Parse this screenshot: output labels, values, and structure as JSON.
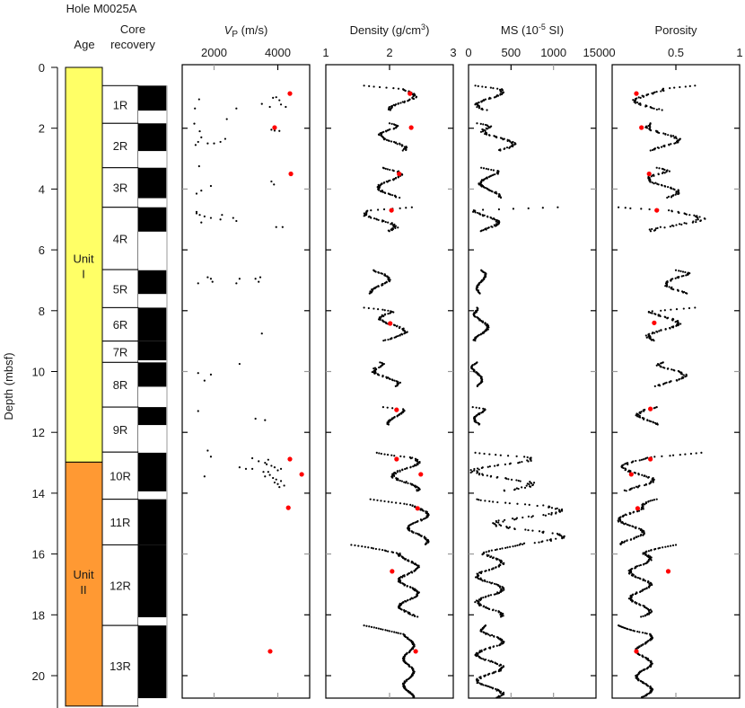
{
  "chart_data": {
    "type": "scatter",
    "title": "Hole M0025A",
    "ylabel": "Depth (mbsf)",
    "ylim": [
      0,
      21
    ],
    "yticks": [
      "0",
      "2",
      "4",
      "6",
      "8",
      "10",
      "12",
      "14",
      "16",
      "18",
      "20"
    ],
    "columns": {
      "age_label": "Age",
      "core_label_1": "Core",
      "core_label_2": "recovery"
    },
    "units": [
      {
        "name_1": "Unit",
        "name_2": "I",
        "top": 0,
        "bottom": 12.98,
        "color": "#FFFF66"
      },
      {
        "name_1": "Unit",
        "name_2": "II",
        "top": 12.98,
        "bottom": 21.0,
        "color": "#FF9933"
      }
    ],
    "cores": [
      {
        "label": "1R",
        "top": 0.6,
        "bottom": 1.84,
        "rec_top": 0.6,
        "rec_bottom": 1.42
      },
      {
        "label": "2R",
        "top": 1.84,
        "bottom": 3.3,
        "rec_top": 1.84,
        "rec_bottom": 2.75
      },
      {
        "label": "3R",
        "top": 3.3,
        "bottom": 4.6,
        "rec_top": 3.3,
        "rec_bottom": 4.3
      },
      {
        "label": "4R",
        "top": 4.6,
        "bottom": 6.65,
        "rec_top": 4.6,
        "rec_bottom": 5.4
      },
      {
        "label": "5R",
        "top": 6.65,
        "bottom": 7.9,
        "rec_top": 6.67,
        "rec_bottom": 7.45
      },
      {
        "label": "6R",
        "top": 7.9,
        "bottom": 9.0,
        "rec_top": 7.9,
        "rec_bottom": 9.0
      },
      {
        "label": "7R",
        "top": 9.0,
        "bottom": 9.7,
        "rec_top": 9.0,
        "rec_bottom": 9.63
      },
      {
        "label": "8R",
        "top": 9.7,
        "bottom": 11.17,
        "rec_top": 9.7,
        "rec_bottom": 10.5
      },
      {
        "label": "9R",
        "top": 11.17,
        "bottom": 12.65,
        "rec_top": 11.17,
        "rec_bottom": 11.76
      },
      {
        "label": "10R",
        "top": 12.65,
        "bottom": 14.2,
        "rec_top": 12.67,
        "rec_bottom": 13.94
      },
      {
        "label": "11R",
        "top": 14.2,
        "bottom": 15.7,
        "rec_top": 14.2,
        "rec_bottom": 15.7
      },
      {
        "label": "12R",
        "top": 15.7,
        "bottom": 18.35,
        "rec_top": 15.7,
        "rec_bottom": 18.08
      },
      {
        "label": "13R",
        "top": 18.35,
        "bottom": 21.0,
        "rec_top": 18.35,
        "rec_bottom": 20.74
      }
    ],
    "panels": [
      {
        "id": "vp",
        "title_main": "V",
        "title_sub": "P",
        "title_rest": " (m/s)",
        "xlim": [
          1000,
          5000
        ],
        "xticks": [
          {
            "v": 2000,
            "label": "2000"
          },
          {
            "v": 4000,
            "label": "4000"
          }
        ],
        "edge_labels": false,
        "logs": [
          [
            1.05,
            1530
          ],
          [
            1.35,
            1400
          ],
          [
            1.85,
            1380
          ],
          [
            2.1,
            1550
          ],
          [
            2.3,
            1600
          ],
          [
            2.45,
            1500
          ],
          [
            2.5,
            1800
          ],
          [
            2.5,
            2000
          ],
          [
            2.45,
            2200
          ],
          [
            2.35,
            2350
          ],
          [
            2.55,
            1420
          ],
          [
            1.7,
            2400
          ],
          [
            1.0,
            3850
          ],
          [
            0.98,
            3950
          ],
          [
            1.08,
            4050
          ],
          [
            1.22,
            4100
          ],
          [
            1.3,
            4250
          ],
          [
            1.2,
            3500
          ],
          [
            1.3,
            3750
          ],
          [
            1.35,
            2700
          ],
          [
            2.05,
            3800
          ],
          [
            2.08,
            3900
          ],
          [
            2.09,
            4050
          ],
          [
            3.25,
            1530
          ],
          [
            4.05,
            1600
          ],
          [
            3.9,
            1900
          ],
          [
            4.15,
            1450
          ],
          [
            4.8,
            1450
          ],
          [
            4.85,
            1550
          ],
          [
            4.9,
            1700
          ],
          [
            4.95,
            1900
          ],
          [
            5.0,
            2200
          ],
          [
            4.95,
            2600
          ],
          [
            5.05,
            2700
          ],
          [
            4.85,
            2250
          ],
          [
            5.1,
            1600
          ],
          [
            4.75,
            1450
          ],
          [
            3.75,
            3800
          ],
          [
            3.85,
            3880
          ],
          [
            5.25,
            3950
          ],
          [
            5.25,
            4150
          ],
          [
            6.9,
            1800
          ],
          [
            6.95,
            1900
          ],
          [
            7.05,
            1950
          ],
          [
            7.1,
            1500
          ],
          [
            6.95,
            2800
          ],
          [
            7.1,
            2700
          ],
          [
            6.95,
            3300
          ],
          [
            7.05,
            3400
          ],
          [
            6.9,
            3450
          ],
          [
            8.75,
            3500
          ],
          [
            9.75,
            2800
          ],
          [
            10.05,
            1500
          ],
          [
            10.1,
            1900
          ],
          [
            10.3,
            1700
          ],
          [
            11.3,
            1500
          ],
          [
            11.55,
            3300
          ],
          [
            11.6,
            3600
          ],
          [
            12.6,
            1800
          ],
          [
            12.8,
            1900
          ],
          [
            13.45,
            1700
          ],
          [
            12.85,
            3200
          ],
          [
            13.15,
            2800
          ],
          [
            13.2,
            3000
          ],
          [
            13.2,
            3200
          ],
          [
            12.95,
            3400
          ],
          [
            13.0,
            3600
          ],
          [
            12.9,
            3700
          ],
          [
            13.05,
            3650
          ],
          [
            13.1,
            3800
          ],
          [
            13.3,
            3700
          ],
          [
            13.4,
            3750
          ],
          [
            13.5,
            3850
          ],
          [
            13.55,
            3950
          ],
          [
            13.6,
            4100
          ],
          [
            13.65,
            3900
          ],
          [
            13.7,
            4000
          ],
          [
            13.3,
            3550
          ],
          [
            13.45,
            3600
          ],
          [
            13.25,
            4000
          ],
          [
            13.75,
            4200
          ],
          [
            13.8,
            4050
          ],
          [
            13.15,
            3900
          ],
          [
            13.2,
            4100
          ]
        ],
        "measured": [
          [
            0.86,
            4380
          ],
          [
            1.98,
            3900
          ],
          [
            3.5,
            4410
          ],
          [
            12.88,
            4380
          ],
          [
            13.38,
            4750
          ],
          [
            14.48,
            4330
          ],
          [
            19.2,
            3760
          ]
        ]
      },
      {
        "id": "density",
        "title_main": "Density (g/cm",
        "title_sup": "3",
        "title_rest": ")",
        "xlim": [
          1,
          3
        ],
        "xticks": [
          {
            "v": 1,
            "label": "1"
          },
          {
            "v": 2,
            "label": "2"
          },
          {
            "v": 3,
            "label": "3"
          }
        ],
        "logs_desc": "continuous MSCL density",
        "segments": [
          {
            "top": 0.6,
            "bottom": 1.42,
            "base": 2.2,
            "amp": 0.2,
            "start": 1.6
          },
          {
            "top": 1.84,
            "bottom": 2.75,
            "base": 2.05,
            "amp": 0.2,
            "start": 2.0
          },
          {
            "top": 3.3,
            "bottom": 4.3,
            "base": 2.0,
            "amp": 0.18,
            "start": 1.9
          },
          {
            "top": 4.6,
            "bottom": 5.4,
            "base": 1.85,
            "amp": 0.25,
            "start": 2.35
          },
          {
            "top": 6.67,
            "bottom": 7.45,
            "base": 1.85,
            "amp": 0.15,
            "start": 1.75
          },
          {
            "top": 7.9,
            "bottom": 9.0,
            "base": 2.05,
            "amp": 0.2,
            "start": 1.6
          },
          {
            "top": 9.7,
            "bottom": 10.5,
            "base": 1.95,
            "amp": 0.2,
            "start": 1.85
          },
          {
            "top": 11.17,
            "bottom": 11.76,
            "base": 2.1,
            "amp": 0.12,
            "start": 1.9
          },
          {
            "top": 12.67,
            "bottom": 13.94,
            "base": 2.25,
            "amp": 0.2,
            "start": 1.8
          },
          {
            "top": 14.2,
            "bottom": 15.7,
            "base": 2.45,
            "amp": 0.15,
            "start": 1.7
          },
          {
            "top": 15.7,
            "bottom": 18.08,
            "base": 2.3,
            "amp": 0.15,
            "start": 1.4
          },
          {
            "top": 18.35,
            "bottom": 20.74,
            "base": 2.3,
            "amp": 0.08,
            "start": 1.6
          }
        ],
        "measured": [
          [
            0.86,
            2.32
          ],
          [
            1.98,
            2.34
          ],
          [
            3.5,
            2.15
          ],
          [
            4.7,
            2.03
          ],
          [
            8.42,
            2.01
          ],
          [
            11.26,
            2.11
          ],
          [
            12.88,
            2.11
          ],
          [
            13.38,
            2.49
          ],
          [
            14.5,
            2.44
          ],
          [
            16.57,
            2.04
          ],
          [
            19.2,
            2.41
          ]
        ]
      },
      {
        "id": "ms",
        "title_main": "MS (10",
        "title_sup": "-5",
        "title_rest": " SI)",
        "xlim": [
          0,
          1500
        ],
        "xticks": [
          {
            "v": 0,
            "label": "0"
          },
          {
            "v": 500,
            "label": "500"
          },
          {
            "v": 1000,
            "label": "1000"
          },
          {
            "v": 1500,
            "label": "1500"
          }
        ],
        "segments": [
          {
            "top": 0.6,
            "bottom": 1.42,
            "base": 250,
            "amp": 150,
            "start": 80
          },
          {
            "top": 1.84,
            "bottom": 2.75,
            "base": 350,
            "amp": 180,
            "start": 100
          },
          {
            "top": 3.3,
            "bottom": 4.3,
            "base": 250,
            "amp": 120,
            "start": 150
          },
          {
            "top": 4.6,
            "bottom": 5.4,
            "base": 200,
            "amp": 150,
            "start": 1050
          },
          {
            "top": 6.67,
            "bottom": 7.45,
            "base": 150,
            "amp": 50,
            "start": 150
          },
          {
            "top": 7.9,
            "bottom": 9.0,
            "base": 150,
            "amp": 80,
            "start": 100
          },
          {
            "top": 9.7,
            "bottom": 10.5,
            "base": 100,
            "amp": 60,
            "start": 100
          },
          {
            "top": 11.17,
            "bottom": 11.76,
            "base": 150,
            "amp": 80,
            "start": 50
          },
          {
            "top": 12.67,
            "bottom": 13.94,
            "base": 400,
            "amp": 350,
            "start": 80
          },
          {
            "top": 14.2,
            "bottom": 15.7,
            "base": 700,
            "amp": 400,
            "start": 100
          },
          {
            "top": 15.7,
            "bottom": 18.08,
            "base": 250,
            "amp": 150,
            "start": 600
          },
          {
            "top": 18.35,
            "bottom": 20.74,
            "base": 250,
            "amp": 150,
            "start": 200
          }
        ],
        "measured": []
      },
      {
        "id": "porosity",
        "title_main": "Porosity",
        "title_sup": "",
        "title_rest": "",
        "xlim": [
          0,
          1
        ],
        "xticks": [
          {
            "v": 0,
            "label": "0"
          },
          {
            "v": 0.5,
            "label": "0.5"
          },
          {
            "v": 1,
            "label": "1"
          }
        ],
        "segments": [
          {
            "top": 0.6,
            "bottom": 1.42,
            "base": 0.3,
            "amp": 0.12,
            "start": 0.65
          },
          {
            "top": 1.84,
            "bottom": 2.75,
            "base": 0.4,
            "amp": 0.12,
            "start": 0.3
          },
          {
            "top": 3.3,
            "bottom": 4.3,
            "base": 0.4,
            "amp": 0.12,
            "start": 0.35
          },
          {
            "top": 4.6,
            "bottom": 5.4,
            "base": 0.5,
            "amp": 0.2,
            "start": 0.05
          },
          {
            "top": 6.67,
            "bottom": 7.45,
            "base": 0.52,
            "amp": 0.1,
            "start": 0.5
          },
          {
            "top": 7.9,
            "bottom": 9.0,
            "base": 0.4,
            "amp": 0.12,
            "start": 0.65
          },
          {
            "top": 9.7,
            "bottom": 10.5,
            "base": 0.45,
            "amp": 0.12,
            "start": 0.4
          },
          {
            "top": 11.17,
            "bottom": 11.76,
            "base": 0.3,
            "amp": 0.1,
            "start": 0.35
          },
          {
            "top": 12.67,
            "bottom": 13.94,
            "base": 0.2,
            "amp": 0.12,
            "start": 0.7
          },
          {
            "top": 14.2,
            "bottom": 15.7,
            "base": 0.15,
            "amp": 0.1,
            "start": 0.35
          },
          {
            "top": 15.7,
            "bottom": 18.08,
            "base": 0.22,
            "amp": 0.08,
            "start": 0.5
          },
          {
            "top": 18.35,
            "bottom": 20.74,
            "base": 0.25,
            "amp": 0.06,
            "start": 0.05
          }
        ],
        "measured": [
          [
            0.86,
            0.19
          ],
          [
            1.98,
            0.23
          ],
          [
            3.5,
            0.29
          ],
          [
            4.7,
            0.35
          ],
          [
            8.4,
            0.33
          ],
          [
            11.23,
            0.3
          ],
          [
            12.88,
            0.3
          ],
          [
            13.38,
            0.15
          ],
          [
            14.5,
            0.2
          ],
          [
            16.57,
            0.44
          ],
          [
            19.2,
            0.19
          ]
        ]
      }
    ],
    "legend": {
      "continuous_color": "#000000",
      "discrete_color": "#FF0000"
    }
  }
}
